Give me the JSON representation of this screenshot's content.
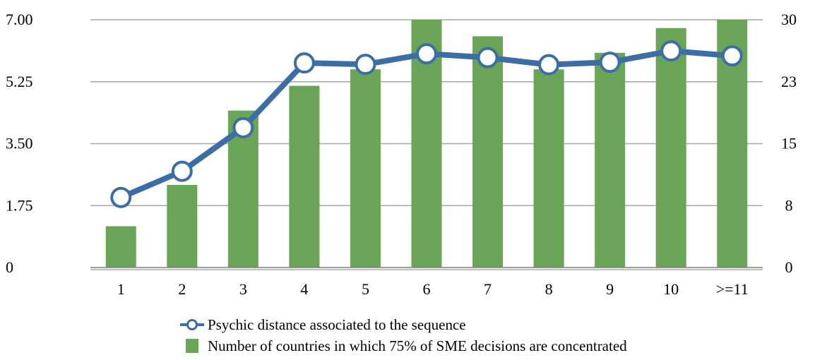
{
  "chart_data": {
    "type": "bar+line",
    "categories": [
      "1",
      "2",
      "3",
      "4",
      "5",
      "6",
      "7",
      "8",
      "9",
      "10",
      ">=11"
    ],
    "series": [
      {
        "name": "Number of countries in which 75% of SME decisions are concentrated",
        "type": "bar",
        "axis": "right",
        "color": "#6aa457",
        "values": [
          5,
          10,
          19,
          22,
          24,
          30,
          28,
          24,
          26,
          29,
          30
        ]
      },
      {
        "name": "Psychic distance associated to the sequence",
        "type": "line",
        "axis": "left",
        "color": "#3a6ea5",
        "values": [
          1.98,
          2.72,
          3.95,
          5.78,
          5.74,
          6.04,
          5.93,
          5.73,
          5.8,
          6.12,
          5.98
        ]
      }
    ],
    "left_axis": {
      "ticks": [
        "0",
        "1.75",
        "3.50",
        "5.25",
        "7.00"
      ],
      "ylim": [
        0,
        7
      ]
    },
    "right_axis": {
      "ticks": [
        "0",
        "8",
        "15",
        "23",
        "30"
      ],
      "ylim": [
        0,
        30
      ]
    },
    "grid": true,
    "legend_position": "bottom"
  }
}
